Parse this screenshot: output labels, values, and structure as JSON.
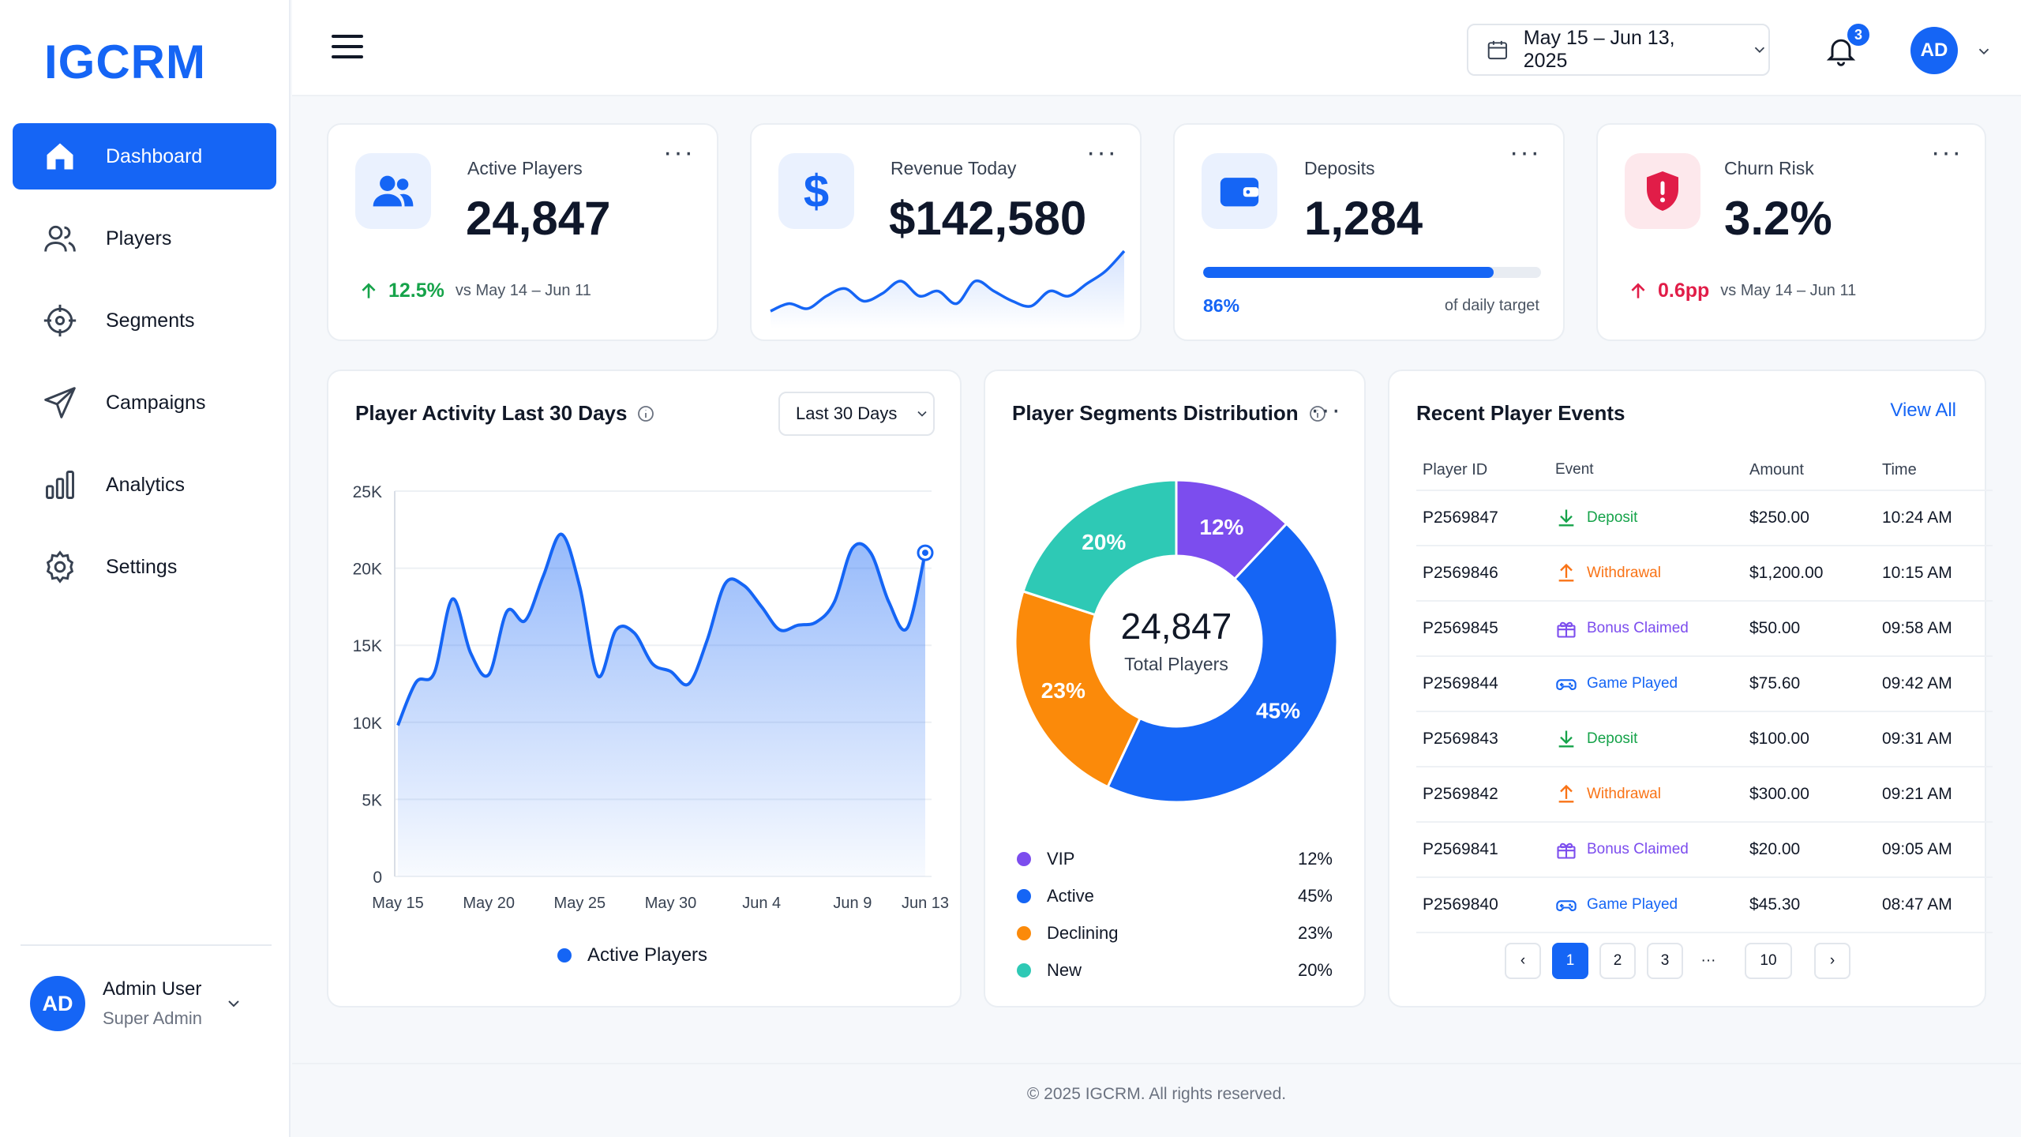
{
  "app": {
    "logo": "IGCRM"
  },
  "sidebar": {
    "items": [
      {
        "label": "Dashboard",
        "icon": "home-icon",
        "active": true
      },
      {
        "label": "Players",
        "icon": "users-icon"
      },
      {
        "label": "Segments",
        "icon": "crosshair-icon"
      },
      {
        "label": "Campaigns",
        "icon": "send-icon"
      },
      {
        "label": "Analytics",
        "icon": "bar-chart-icon"
      },
      {
        "label": "Settings",
        "icon": "gear-icon"
      }
    ],
    "user": {
      "initials": "AD",
      "name": "Admin User",
      "role": "Super Admin"
    }
  },
  "topbar": {
    "date_range": "May 15 – Jun 13, 2025",
    "notifications_count": "3",
    "avatar_initials": "AD"
  },
  "kpis": {
    "active_players": {
      "label": "Active Players",
      "value": "24,847",
      "delta": "12.5%",
      "compare": "vs May 14 – Jun 11"
    },
    "revenue": {
      "label": "Revenue Today",
      "value": "$142,580"
    },
    "deposits": {
      "label": "Deposits",
      "value": "1,284",
      "progress_pct": "86%",
      "progress_value": 0.86,
      "progress_note": "of daily target"
    },
    "churn": {
      "label": "Churn Risk",
      "value": "3.2%",
      "delta": "0.6pp",
      "compare": "vs May 14 – Jun 11"
    }
  },
  "activity": {
    "title": "Player Activity Last 30 Days",
    "range_select": "Last 30 Days",
    "legend": "Active Players"
  },
  "segments": {
    "title": "Player Segments Distribution",
    "total": "24,847",
    "total_label": "Total Players",
    "items": [
      {
        "label": "VIP",
        "pct": "12%",
        "value": 12,
        "color": "#7c4dee"
      },
      {
        "label": "Active",
        "pct": "45%",
        "value": 45,
        "color": "#1565f5"
      },
      {
        "label": "Declining",
        "pct": "23%",
        "value": 23,
        "color": "#fb8a0a"
      },
      {
        "label": "New",
        "pct": "20%",
        "value": 20,
        "color": "#2ec9b5"
      }
    ]
  },
  "events": {
    "title": "Recent Player Events",
    "view_all": "View All",
    "columns": [
      "Player ID",
      "Event",
      "Amount",
      "Time"
    ],
    "rows": [
      {
        "id": "P2569847",
        "event": "Deposit",
        "type": "deposit",
        "amount": "$250.00",
        "time": "10:24 AM"
      },
      {
        "id": "P2569846",
        "event": "Withdrawal",
        "type": "withdrawal",
        "amount": "$1,200.00",
        "time": "10:15 AM"
      },
      {
        "id": "P2569845",
        "event": "Bonus Claimed",
        "type": "bonus",
        "amount": "$50.00",
        "time": "09:58 AM"
      },
      {
        "id": "P2569844",
        "event": "Game Played",
        "type": "game",
        "amount": "$75.60",
        "time": "09:42 AM"
      },
      {
        "id": "P2569843",
        "event": "Deposit",
        "type": "deposit",
        "amount": "$100.00",
        "time": "09:31 AM"
      },
      {
        "id": "P2569842",
        "event": "Withdrawal",
        "type": "withdrawal",
        "amount": "$300.00",
        "time": "09:21 AM"
      },
      {
        "id": "P2569841",
        "event": "Bonus Claimed",
        "type": "bonus",
        "amount": "$20.00",
        "time": "09:05 AM"
      },
      {
        "id": "P2569840",
        "event": "Game Played",
        "type": "game",
        "amount": "$45.30",
        "time": "08:47 AM"
      }
    ],
    "pagination": {
      "prev": "‹",
      "pages": [
        "1",
        "2",
        "3"
      ],
      "ellipsis": "···",
      "last": "10",
      "next": "›",
      "current": "1"
    }
  },
  "footer": {
    "text": "© 2025 IGCRM. All rights reserved."
  },
  "colors": {
    "brand": "#1565f5",
    "green": "#16a34a",
    "red": "#e11d48",
    "orange": "#fb8a0a",
    "purple": "#7c4dee",
    "teal": "#2ec9b5"
  },
  "chart_data": [
    {
      "type": "area",
      "title": "Player Activity Last 30 Days",
      "x": [
        "May 15",
        "May 16",
        "May 17",
        "May 18",
        "May 19",
        "May 20",
        "May 21",
        "May 22",
        "May 23",
        "May 24",
        "May 25",
        "May 26",
        "May 27",
        "May 28",
        "May 29",
        "May 30",
        "May 31",
        "Jun 1",
        "Jun 2",
        "Jun 3",
        "Jun 4",
        "Jun 5",
        "Jun 6",
        "Jun 7",
        "Jun 8",
        "Jun 9",
        "Jun 10",
        "Jun 11",
        "Jun 12",
        "Jun 13"
      ],
      "xticks": [
        "May 15",
        "May 20",
        "May 25",
        "May 30",
        "Jun 4",
        "Jun 9",
        "Jun 13"
      ],
      "yticks": [
        "0",
        "5K",
        "10K",
        "15K",
        "20K",
        "25K"
      ],
      "ylim": [
        0,
        25000
      ],
      "series": [
        {
          "name": "Active Players",
          "color": "#1565f5",
          "values": [
            9800,
            12600,
            13200,
            18000,
            14500,
            13100,
            17200,
            16600,
            19500,
            22200,
            18800,
            13000,
            16000,
            15800,
            13800,
            13300,
            12500,
            15300,
            19000,
            18900,
            17500,
            16000,
            16300,
            16500,
            17800,
            21300,
            21000,
            17800,
            16100,
            21000
          ]
        }
      ]
    },
    {
      "type": "pie",
      "title": "Player Segments Distribution",
      "categories": [
        "VIP",
        "Active",
        "Declining",
        "New"
      ],
      "values": [
        12,
        45,
        23,
        20
      ]
    },
    {
      "type": "line",
      "title": "Revenue Today",
      "values": [
        6,
        9,
        7,
        12,
        15,
        10,
        13,
        18,
        12,
        14,
        9,
        18,
        14,
        10,
        8,
        14,
        12,
        17,
        22,
        30
      ]
    }
  ]
}
